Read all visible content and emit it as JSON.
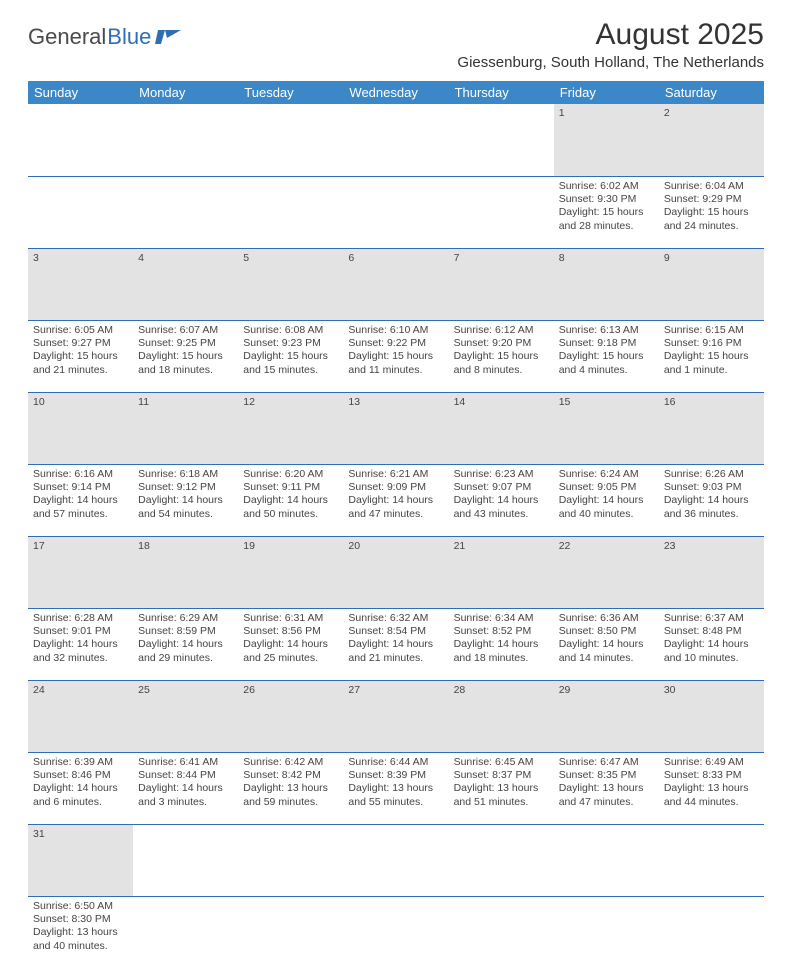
{
  "logo": {
    "word1": "General",
    "word2": "Blue"
  },
  "title": "August 2025",
  "location": "Giessenburg, South Holland, The Netherlands",
  "colors": {
    "header_bg": "#3b87c8",
    "header_text": "#ffffff",
    "daynum_bg": "#e3e3e3",
    "rule": "#2e6fb4",
    "logo_gray": "#4a4a4a",
    "logo_blue": "#2e6fb4"
  },
  "day_headers": [
    "Sunday",
    "Monday",
    "Tuesday",
    "Wednesday",
    "Thursday",
    "Friday",
    "Saturday"
  ],
  "weeks": [
    {
      "nums": [
        "",
        "",
        "",
        "",
        "",
        "1",
        "2"
      ],
      "cells": [
        null,
        null,
        null,
        null,
        null,
        {
          "sunrise": "Sunrise: 6:02 AM",
          "sunset": "Sunset: 9:30 PM",
          "day1": "Daylight: 15 hours",
          "day2": "and 28 minutes."
        },
        {
          "sunrise": "Sunrise: 6:04 AM",
          "sunset": "Sunset: 9:29 PM",
          "day1": "Daylight: 15 hours",
          "day2": "and 24 minutes."
        }
      ]
    },
    {
      "nums": [
        "3",
        "4",
        "5",
        "6",
        "7",
        "8",
        "9"
      ],
      "cells": [
        {
          "sunrise": "Sunrise: 6:05 AM",
          "sunset": "Sunset: 9:27 PM",
          "day1": "Daylight: 15 hours",
          "day2": "and 21 minutes."
        },
        {
          "sunrise": "Sunrise: 6:07 AM",
          "sunset": "Sunset: 9:25 PM",
          "day1": "Daylight: 15 hours",
          "day2": "and 18 minutes."
        },
        {
          "sunrise": "Sunrise: 6:08 AM",
          "sunset": "Sunset: 9:23 PM",
          "day1": "Daylight: 15 hours",
          "day2": "and 15 minutes."
        },
        {
          "sunrise": "Sunrise: 6:10 AM",
          "sunset": "Sunset: 9:22 PM",
          "day1": "Daylight: 15 hours",
          "day2": "and 11 minutes."
        },
        {
          "sunrise": "Sunrise: 6:12 AM",
          "sunset": "Sunset: 9:20 PM",
          "day1": "Daylight: 15 hours",
          "day2": "and 8 minutes."
        },
        {
          "sunrise": "Sunrise: 6:13 AM",
          "sunset": "Sunset: 9:18 PM",
          "day1": "Daylight: 15 hours",
          "day2": "and 4 minutes."
        },
        {
          "sunrise": "Sunrise: 6:15 AM",
          "sunset": "Sunset: 9:16 PM",
          "day1": "Daylight: 15 hours",
          "day2": "and 1 minute."
        }
      ]
    },
    {
      "nums": [
        "10",
        "11",
        "12",
        "13",
        "14",
        "15",
        "16"
      ],
      "cells": [
        {
          "sunrise": "Sunrise: 6:16 AM",
          "sunset": "Sunset: 9:14 PM",
          "day1": "Daylight: 14 hours",
          "day2": "and 57 minutes."
        },
        {
          "sunrise": "Sunrise: 6:18 AM",
          "sunset": "Sunset: 9:12 PM",
          "day1": "Daylight: 14 hours",
          "day2": "and 54 minutes."
        },
        {
          "sunrise": "Sunrise: 6:20 AM",
          "sunset": "Sunset: 9:11 PM",
          "day1": "Daylight: 14 hours",
          "day2": "and 50 minutes."
        },
        {
          "sunrise": "Sunrise: 6:21 AM",
          "sunset": "Sunset: 9:09 PM",
          "day1": "Daylight: 14 hours",
          "day2": "and 47 minutes."
        },
        {
          "sunrise": "Sunrise: 6:23 AM",
          "sunset": "Sunset: 9:07 PM",
          "day1": "Daylight: 14 hours",
          "day2": "and 43 minutes."
        },
        {
          "sunrise": "Sunrise: 6:24 AM",
          "sunset": "Sunset: 9:05 PM",
          "day1": "Daylight: 14 hours",
          "day2": "and 40 minutes."
        },
        {
          "sunrise": "Sunrise: 6:26 AM",
          "sunset": "Sunset: 9:03 PM",
          "day1": "Daylight: 14 hours",
          "day2": "and 36 minutes."
        }
      ]
    },
    {
      "nums": [
        "17",
        "18",
        "19",
        "20",
        "21",
        "22",
        "23"
      ],
      "cells": [
        {
          "sunrise": "Sunrise: 6:28 AM",
          "sunset": "Sunset: 9:01 PM",
          "day1": "Daylight: 14 hours",
          "day2": "and 32 minutes."
        },
        {
          "sunrise": "Sunrise: 6:29 AM",
          "sunset": "Sunset: 8:59 PM",
          "day1": "Daylight: 14 hours",
          "day2": "and 29 minutes."
        },
        {
          "sunrise": "Sunrise: 6:31 AM",
          "sunset": "Sunset: 8:56 PM",
          "day1": "Daylight: 14 hours",
          "day2": "and 25 minutes."
        },
        {
          "sunrise": "Sunrise: 6:32 AM",
          "sunset": "Sunset: 8:54 PM",
          "day1": "Daylight: 14 hours",
          "day2": "and 21 minutes."
        },
        {
          "sunrise": "Sunrise: 6:34 AM",
          "sunset": "Sunset: 8:52 PM",
          "day1": "Daylight: 14 hours",
          "day2": "and 18 minutes."
        },
        {
          "sunrise": "Sunrise: 6:36 AM",
          "sunset": "Sunset: 8:50 PM",
          "day1": "Daylight: 14 hours",
          "day2": "and 14 minutes."
        },
        {
          "sunrise": "Sunrise: 6:37 AM",
          "sunset": "Sunset: 8:48 PM",
          "day1": "Daylight: 14 hours",
          "day2": "and 10 minutes."
        }
      ]
    },
    {
      "nums": [
        "24",
        "25",
        "26",
        "27",
        "28",
        "29",
        "30"
      ],
      "cells": [
        {
          "sunrise": "Sunrise: 6:39 AM",
          "sunset": "Sunset: 8:46 PM",
          "day1": "Daylight: 14 hours",
          "day2": "and 6 minutes."
        },
        {
          "sunrise": "Sunrise: 6:41 AM",
          "sunset": "Sunset: 8:44 PM",
          "day1": "Daylight: 14 hours",
          "day2": "and 3 minutes."
        },
        {
          "sunrise": "Sunrise: 6:42 AM",
          "sunset": "Sunset: 8:42 PM",
          "day1": "Daylight: 13 hours",
          "day2": "and 59 minutes."
        },
        {
          "sunrise": "Sunrise: 6:44 AM",
          "sunset": "Sunset: 8:39 PM",
          "day1": "Daylight: 13 hours",
          "day2": "and 55 minutes."
        },
        {
          "sunrise": "Sunrise: 6:45 AM",
          "sunset": "Sunset: 8:37 PM",
          "day1": "Daylight: 13 hours",
          "day2": "and 51 minutes."
        },
        {
          "sunrise": "Sunrise: 6:47 AM",
          "sunset": "Sunset: 8:35 PM",
          "day1": "Daylight: 13 hours",
          "day2": "and 47 minutes."
        },
        {
          "sunrise": "Sunrise: 6:49 AM",
          "sunset": "Sunset: 8:33 PM",
          "day1": "Daylight: 13 hours",
          "day2": "and 44 minutes."
        }
      ]
    },
    {
      "nums": [
        "31",
        "",
        "",
        "",
        "",
        "",
        ""
      ],
      "cells": [
        {
          "sunrise": "Sunrise: 6:50 AM",
          "sunset": "Sunset: 8:30 PM",
          "day1": "Daylight: 13 hours",
          "day2": "and 40 minutes."
        },
        null,
        null,
        null,
        null,
        null,
        null
      ]
    }
  ]
}
